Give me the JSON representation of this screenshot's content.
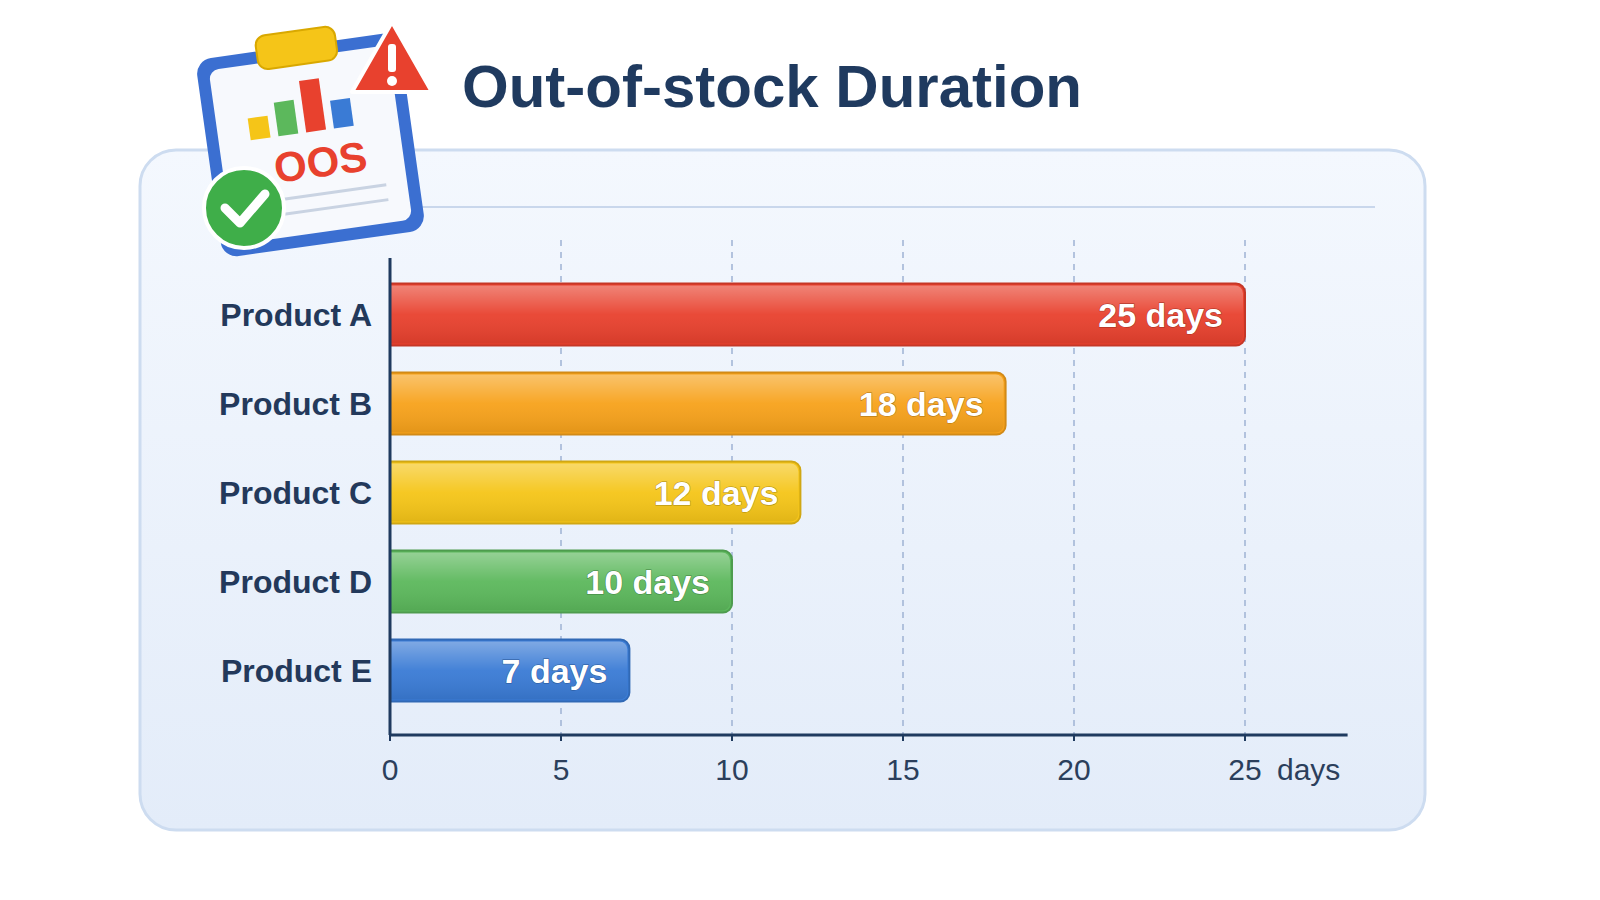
{
  "chart_data": {
    "type": "bar",
    "title": "Out-of-stock Duration",
    "orientation": "horizontal",
    "categories": [
      "Product A",
      "Product B",
      "Product C",
      "Product D",
      "Product E"
    ],
    "values": [
      25,
      18,
      12,
      10,
      7
    ],
    "value_labels": [
      "25 days",
      "18 days",
      "12 days",
      "10 days",
      "7 days"
    ],
    "colors": [
      "#e8412e",
      "#f7a21b",
      "#f5c518",
      "#5cb85c",
      "#3a7bd5"
    ],
    "xlim": [
      0,
      28
    ],
    "xticks": [
      0,
      5,
      10,
      15,
      20,
      25
    ],
    "xlabel": "days",
    "grid": true,
    "data_labels": true,
    "annotations": [
      "OOS"
    ]
  }
}
